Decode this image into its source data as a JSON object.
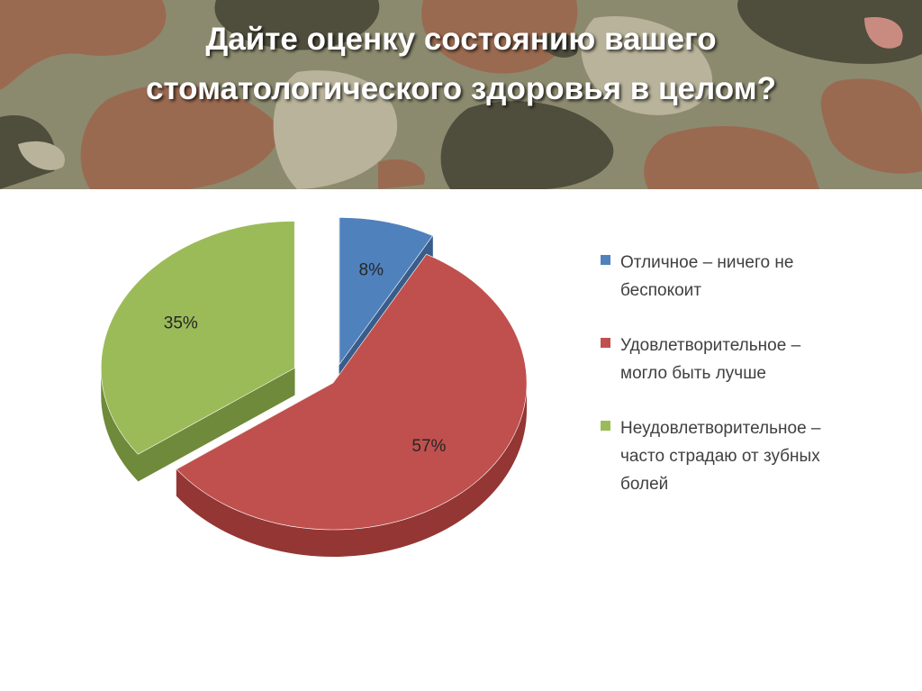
{
  "slide": {
    "title_lines": [
      "Дайте оценку состоянию вашего",
      "стоматологического здоровья в целом?"
    ]
  },
  "chart_data": {
    "type": "pie",
    "style": "3d-exploded",
    "legend_position": "right",
    "slices": [
      {
        "label": "Отличное – ничего не беспокоит",
        "legend_lines": [
          "Отличное – ничего не",
          "беспокоит"
        ],
        "value": 8,
        "display": "8%",
        "color": "#4F81BD",
        "side_color": "#385D8A"
      },
      {
        "label": "Удовлетворительное – могло быть лучше",
        "legend_lines": [
          "Удовлетворительное –",
          "могло быть лучше"
        ],
        "value": 57,
        "display": "57%",
        "color": "#C0504D",
        "side_color": "#943634"
      },
      {
        "label": "Неудовлетворительное – часто страдаю от зубных болей",
        "legend_lines": [
          "Неудовлетворительное –",
          "часто страдаю от зубных",
          "болей"
        ],
        "value": 35,
        "display": "35%",
        "color": "#9BBB59",
        "side_color": "#6F8A3A"
      }
    ]
  },
  "colors": {
    "camo_base": "#8C8A6E",
    "camo_dark": "#4F4D3C",
    "camo_brown": "#9A6A50",
    "camo_light": "#B8B39A"
  }
}
